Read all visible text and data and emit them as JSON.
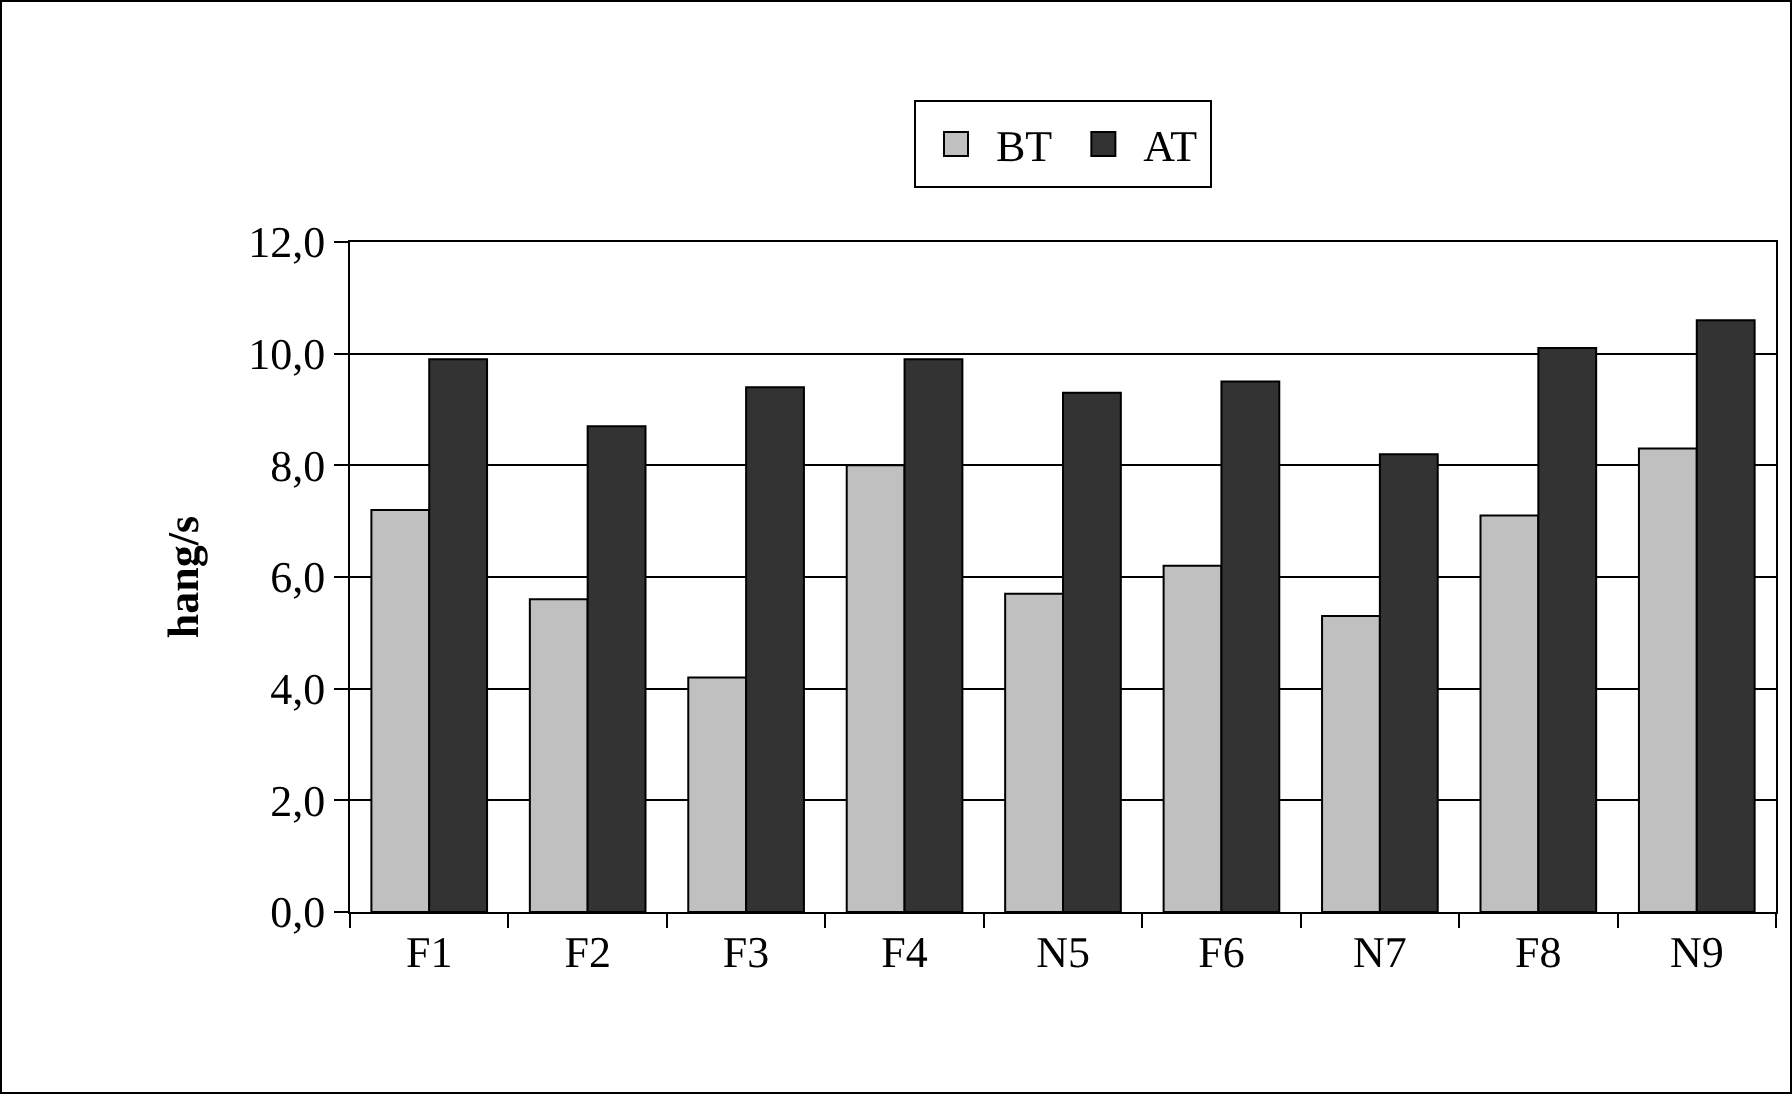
{
  "chart_data": {
    "type": "bar",
    "ylabel": "hang/s",
    "categories": [
      "F1",
      "F2",
      "F3",
      "F4",
      "N5",
      "F6",
      "N7",
      "F8",
      "N9"
    ],
    "series": [
      {
        "name": "BT",
        "color": "#c0c0c0",
        "values": [
          7.2,
          5.6,
          4.2,
          8.0,
          5.7,
          6.2,
          5.3,
          7.1,
          8.3
        ]
      },
      {
        "name": "AT",
        "color": "#333333",
        "values": [
          9.9,
          8.7,
          9.4,
          9.9,
          9.3,
          9.5,
          8.2,
          10.1,
          10.6
        ]
      }
    ],
    "ylim": [
      0,
      12
    ],
    "yticks": [
      {
        "value": 0,
        "label": "0,0"
      },
      {
        "value": 2,
        "label": "2,0"
      },
      {
        "value": 4,
        "label": "4,0"
      },
      {
        "value": 6,
        "label": "6,0"
      },
      {
        "value": 8,
        "label": "8,0"
      },
      {
        "value": 10,
        "label": "10,0"
      },
      {
        "value": 12,
        "label": "12,0"
      }
    ],
    "grid": "y",
    "legend": "top"
  }
}
